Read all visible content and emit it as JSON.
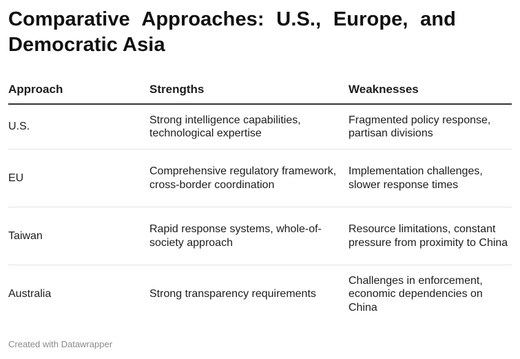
{
  "chart_data": {
    "type": "table",
    "title": "Comparative Approaches: U.S., Europe, and Democratic Asia",
    "columns": [
      "Approach",
      "Strengths",
      "Weaknesses"
    ],
    "rows": [
      {
        "approach": "U.S.",
        "strengths": "Strong intelligence capabilities, technological expertise",
        "weaknesses": "Fragmented policy response, partisan divisions"
      },
      {
        "approach": "EU",
        "strengths": "Comprehensive regulatory framework, cross-border coordination",
        "weaknesses": "Implementation challenges, slower response times"
      },
      {
        "approach": "Taiwan",
        "strengths": "Rapid response systems, whole-of-society approach",
        "weaknesses": "Resource limitations, constant pressure from proximity to China"
      },
      {
        "approach": "Australia",
        "strengths": "Strong transparency requirements",
        "weaknesses": "Challenges in enforcement, economic dependencies on China"
      }
    ],
    "footer": "Created with Datawrapper"
  },
  "colors": {
    "text": "#1d1d1d",
    "header_rule": "#333333",
    "row_rule": "#e4e4e4",
    "footer": "#8a8a8a"
  }
}
